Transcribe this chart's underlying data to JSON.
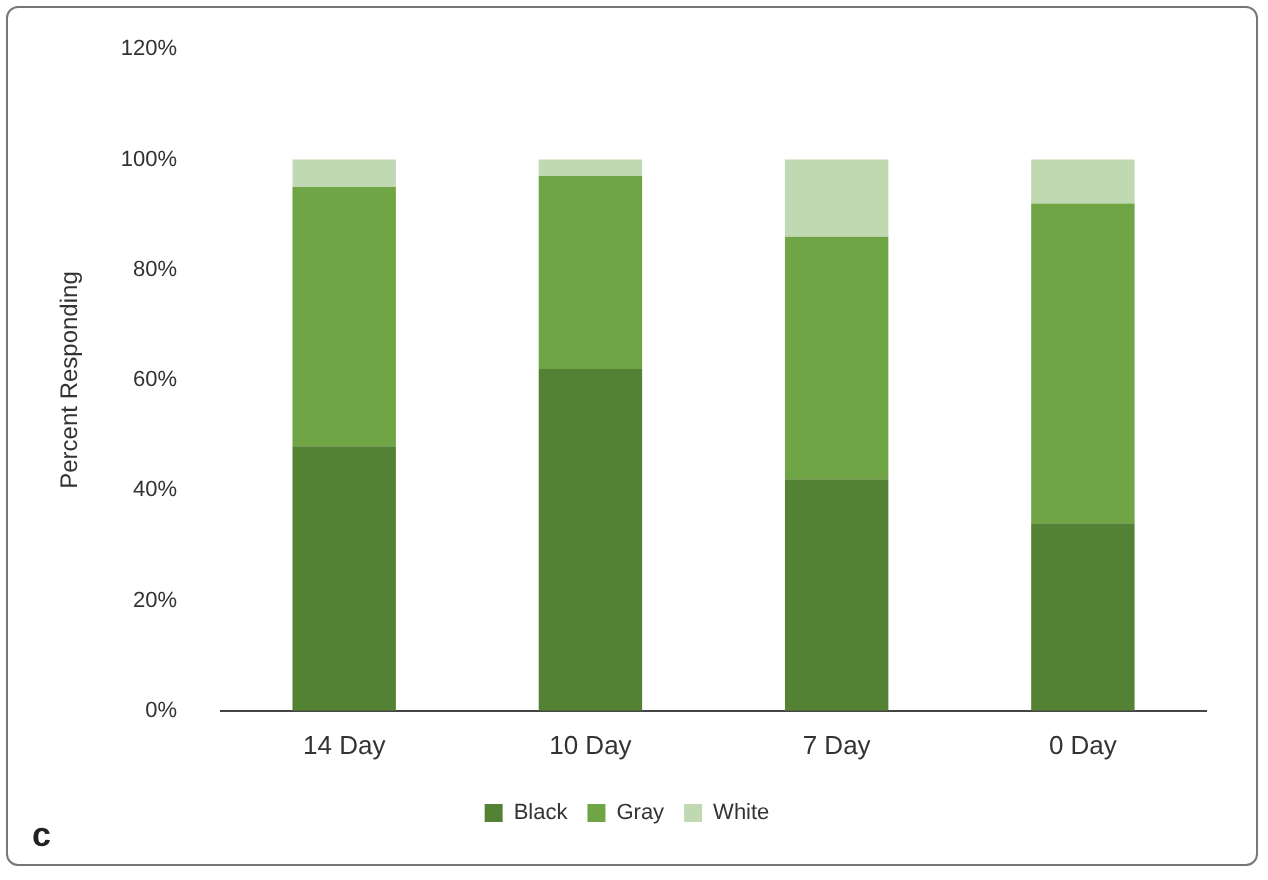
{
  "chart_data": {
    "type": "bar",
    "stacked": true,
    "ylabel": "Percent Responding",
    "categories": [
      "14 Day",
      "10 Day",
      "7 Day",
      "0 Day"
    ],
    "series": [
      {
        "name": "Black",
        "color": "#548235",
        "values": [
          48,
          62,
          42,
          34
        ]
      },
      {
        "name": "Gray",
        "color": "#6fa544",
        "values": [
          47,
          35,
          44,
          58
        ]
      },
      {
        "name": "White",
        "color": "#c0d9b2",
        "values": [
          5,
          3,
          14,
          8
        ]
      }
    ],
    "ylim": [
      0,
      120
    ],
    "yticks": [
      {
        "value": 0,
        "label": "0%"
      },
      {
        "value": 20,
        "label": "20%"
      },
      {
        "value": 40,
        "label": "40%"
      },
      {
        "value": 60,
        "label": "60%"
      },
      {
        "value": 80,
        "label": "80%"
      },
      {
        "value": 100,
        "label": "100%"
      },
      {
        "value": 120,
        "label": "120%"
      }
    ],
    "grid": false,
    "legend": "bottom",
    "annotations": [
      "c"
    ]
  }
}
